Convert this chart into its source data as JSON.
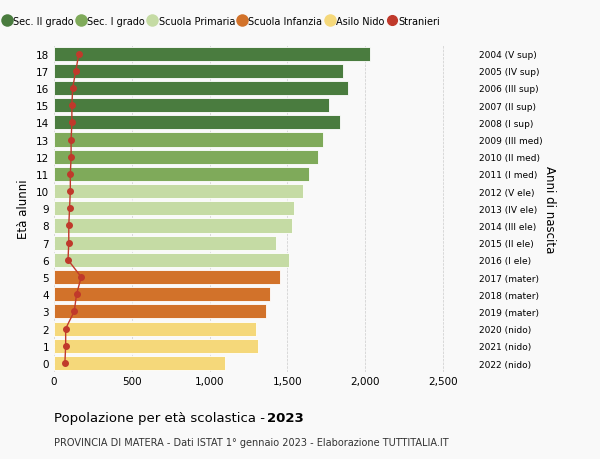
{
  "ages": [
    18,
    17,
    16,
    15,
    14,
    13,
    12,
    11,
    10,
    9,
    8,
    7,
    6,
    5,
    4,
    3,
    2,
    1,
    0
  ],
  "year_labels": [
    "2004 (V sup)",
    "2005 (IV sup)",
    "2006 (III sup)",
    "2007 (II sup)",
    "2008 (I sup)",
    "2009 (III med)",
    "2010 (II med)",
    "2011 (I med)",
    "2012 (V ele)",
    "2013 (IV ele)",
    "2014 (III ele)",
    "2015 (II ele)",
    "2016 (I ele)",
    "2017 (mater)",
    "2018 (mater)",
    "2019 (mater)",
    "2020 (nido)",
    "2021 (nido)",
    "2022 (nido)"
  ],
  "bar_values": [
    2030,
    1860,
    1890,
    1770,
    1840,
    1730,
    1700,
    1640,
    1600,
    1540,
    1530,
    1430,
    1510,
    1450,
    1390,
    1360,
    1300,
    1310,
    1100
  ],
  "stranieri_values": [
    160,
    140,
    120,
    115,
    115,
    110,
    110,
    105,
    105,
    100,
    95,
    95,
    90,
    175,
    145,
    130,
    75,
    75,
    70
  ],
  "bar_colors": [
    "#4a7c3f",
    "#4a7c3f",
    "#4a7c3f",
    "#4a7c3f",
    "#4a7c3f",
    "#7faa5a",
    "#7faa5a",
    "#7faa5a",
    "#c5dba4",
    "#c5dba4",
    "#c5dba4",
    "#c5dba4",
    "#c5dba4",
    "#d2722a",
    "#d2722a",
    "#d2722a",
    "#f5d87a",
    "#f5d87a",
    "#f5d87a"
  ],
  "legend_items": [
    {
      "label": "Sec. II grado",
      "color": "#4a7c3f"
    },
    {
      "label": "Sec. I grado",
      "color": "#7faa5a"
    },
    {
      "label": "Scuola Primaria",
      "color": "#c5dba4"
    },
    {
      "label": "Scuola Infanzia",
      "color": "#d2722a"
    },
    {
      "label": "Asilo Nido",
      "color": "#f5d87a"
    },
    {
      "label": "Stranieri",
      "color": "#c0392b"
    }
  ],
  "ylabel": "Età alunni",
  "right_ylabel": "Anni di nascita",
  "title_normal": "Popolazione per età scolastica - ",
  "title_bold": "2023",
  "subtitle": "PROVINCIA DI MATERA - Dati ISTAT 1° gennaio 2023 - Elaborazione TUTTITALIA.IT",
  "xlim": [
    0,
    2700
  ],
  "xticks": [
    0,
    500,
    1000,
    1500,
    2000,
    2500
  ],
  "xtick_labels": [
    "0",
    "500",
    "1,000",
    "1,500",
    "2,000",
    "2,500"
  ],
  "background_color": "#f9f9f9",
  "bar_height": 0.82,
  "grid_color": "#cccccc",
  "stranieri_line_color": "#c0392b",
  "stranieri_dot_color": "#c0392b"
}
